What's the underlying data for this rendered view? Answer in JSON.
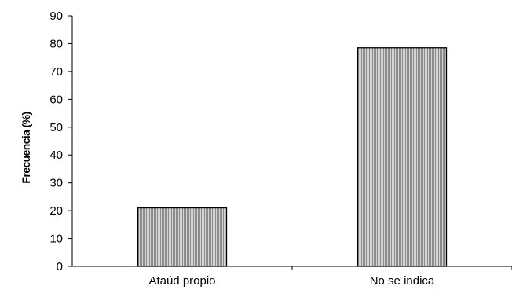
{
  "chart_data": {
    "type": "bar",
    "title": "",
    "xlabel": "",
    "ylabel": "Frecuencia (%)",
    "categories": [
      "Ataúd propio",
      "No se indica"
    ],
    "values": [
      21,
      78.5
    ],
    "ylim": [
      0,
      90
    ],
    "yticks": [
      0,
      10,
      20,
      30,
      40,
      50,
      60,
      70,
      80,
      90
    ],
    "grid": false,
    "legend": "none",
    "bar_fill": "vertical-hatch gray",
    "bar_stroke": "#000000"
  }
}
